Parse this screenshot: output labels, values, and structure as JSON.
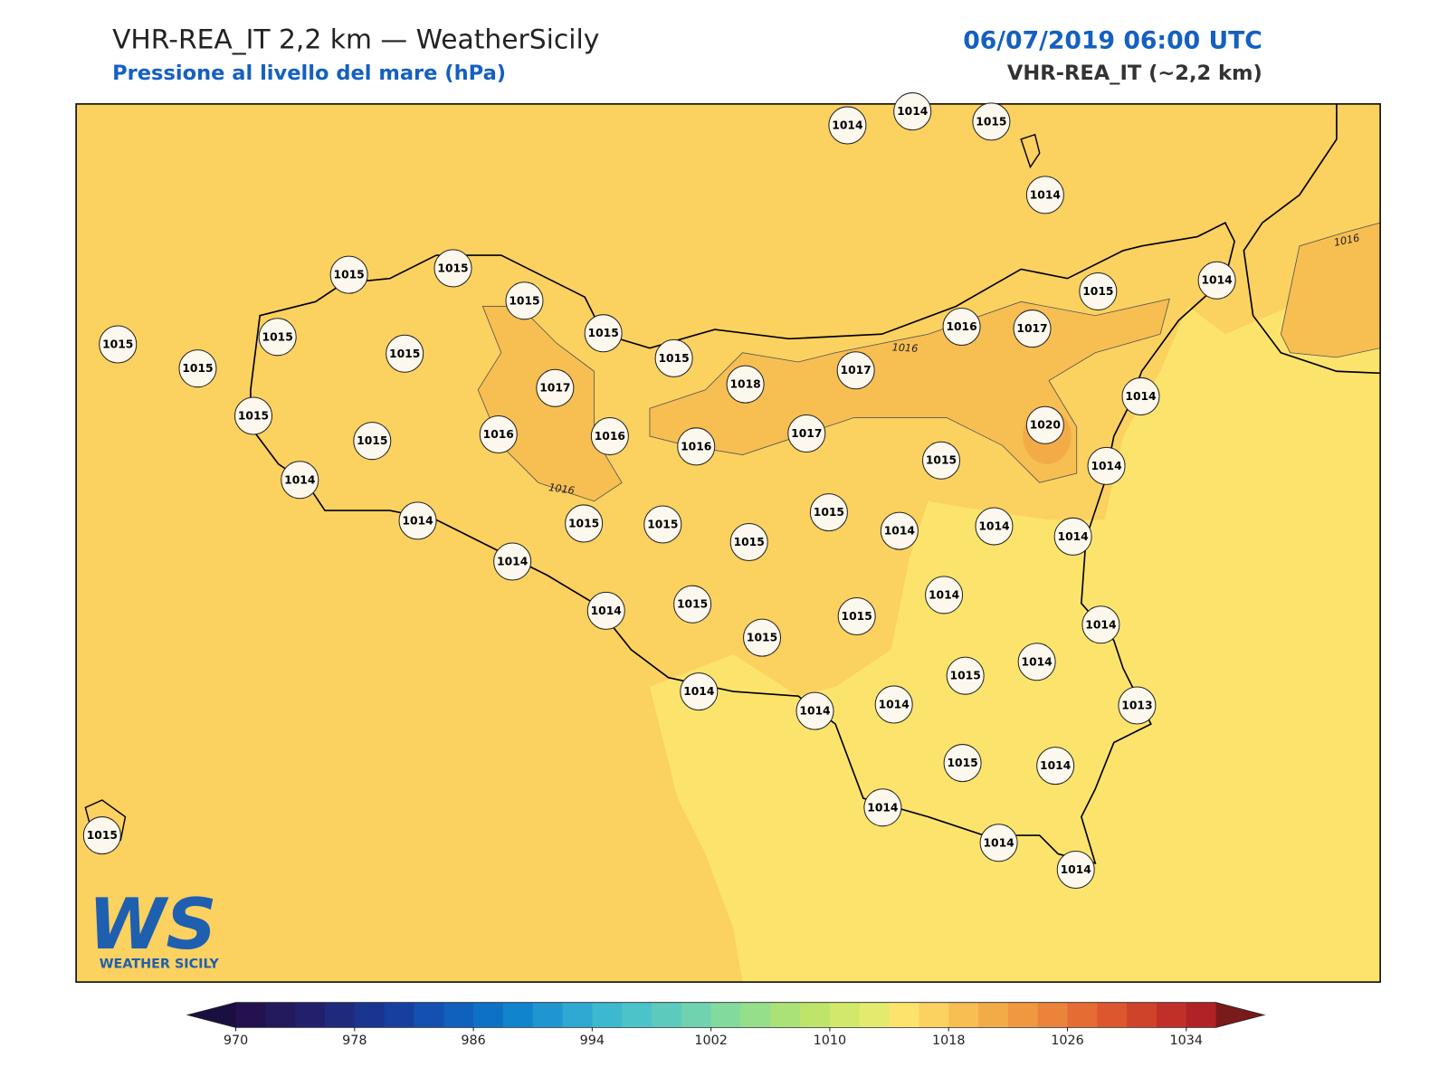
{
  "header": {
    "title": "VHR-REA_IT 2,2 km — WeatherSicily",
    "subtitle": "Pressione al livello del mare (hPa)",
    "datetime": "06/07/2019 06:00 UTC",
    "model": "VHR-REA_IT (~2,2 km)"
  },
  "map": {
    "stations": [
      1014,
      1014,
      1015,
      1014,
      1015,
      1015,
      1015,
      1015,
      1015,
      1015,
      1015,
      1015,
      1015,
      1016,
      1017,
      1015,
      1014,
      1017,
      1018,
      1017,
      1014,
      1015,
      1015,
      1016,
      1016,
      1016,
      1017,
      1020,
      1015,
      1014,
      1014,
      1014,
      1015,
      1015,
      1015,
      1015,
      1014,
      1014,
      1014,
      1014,
      1014,
      1015,
      1014,
      1015,
      1015,
      1014,
      1014,
      1015,
      1014,
      1014,
      1014,
      1013,
      1015,
      1014,
      1014,
      1015,
      1014,
      1014
    ],
    "contour_labels": [
      1016,
      1016,
      1016
    ]
  },
  "colorbar": {
    "lim": [
      970,
      1036
    ],
    "ticks": [
      970,
      978,
      986,
      994,
      1002,
      1010,
      1018,
      1026,
      1034
    ],
    "colors": [
      "#23124f",
      "#231a5e",
      "#22206c",
      "#1f2a7c",
      "#1a3590",
      "#163fa0",
      "#1350b0",
      "#1060bd",
      "#0d72c6",
      "#1084cc",
      "#1f96d0",
      "#2fa8d2",
      "#3cb8cf",
      "#4bc3c8",
      "#5ccbbd",
      "#6ed3ae",
      "#82da9d",
      "#96df8a",
      "#aae278",
      "#bee46a",
      "#d2e86a",
      "#e3ea6e",
      "#fce46c",
      "#fbd160",
      "#f7be52",
      "#f3ab48",
      "#ef9840",
      "#eb833a",
      "#e56c33",
      "#dc572e",
      "#cf432b",
      "#c13028",
      "#b02225"
    ],
    "under_color": "#1a0f40",
    "over_color": "#7a1a1a"
  },
  "logo": {
    "mark": "WS",
    "name": "WEATHER SICILY"
  }
}
